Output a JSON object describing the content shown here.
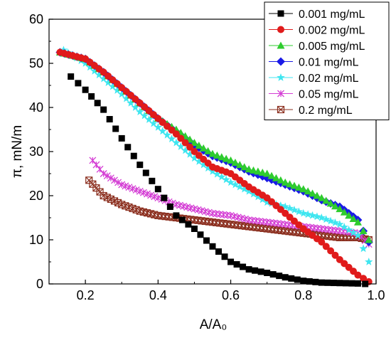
{
  "chart_data": {
    "type": "scatter",
    "xlabel": "A/A₀",
    "ylabel": "π, mN/m",
    "xlim": [
      0.1,
      1.0
    ],
    "ylim": [
      0,
      60
    ],
    "xticks": [
      0.2,
      0.4,
      0.6,
      0.8,
      1.0
    ],
    "xtick_labels": [
      "0.2",
      "0.4",
      "0.6",
      "0.8",
      "1.0"
    ],
    "yticks": [
      0,
      10,
      20,
      30,
      40,
      50,
      60
    ],
    "ytick_labels": [
      "0",
      "10",
      "20",
      "30",
      "40",
      "50",
      "60"
    ],
    "grid": false,
    "legend_position": "top-right",
    "series": [
      {
        "name": "0.001 mg/mL",
        "color": "#000000",
        "marker": "square",
        "points": [
          [
            0.16,
            47
          ],
          [
            0.2,
            44
          ],
          [
            0.25,
            39.5
          ],
          [
            0.3,
            33
          ],
          [
            0.35,
            27
          ],
          [
            0.4,
            21.5
          ],
          [
            0.45,
            15.5
          ],
          [
            0.5,
            12.5
          ],
          [
            0.55,
            8.5
          ],
          [
            0.6,
            5
          ],
          [
            0.65,
            3.3
          ],
          [
            0.7,
            2.5
          ],
          [
            0.75,
            1.5
          ],
          [
            0.8,
            0.7
          ],
          [
            0.85,
            0.3
          ],
          [
            0.9,
            0.2
          ],
          [
            0.95,
            0.1
          ],
          [
            0.97,
            0
          ]
        ]
      },
      {
        "name": "0.002 mg/mL",
        "color": "#e01b1b",
        "marker": "circle",
        "points": [
          [
            0.13,
            52.5
          ],
          [
            0.2,
            51
          ],
          [
            0.25,
            48
          ],
          [
            0.3,
            44.5
          ],
          [
            0.35,
            41
          ],
          [
            0.4,
            37.5
          ],
          [
            0.45,
            34
          ],
          [
            0.5,
            30
          ],
          [
            0.55,
            26.5
          ],
          [
            0.6,
            25
          ],
          [
            0.65,
            22
          ],
          [
            0.7,
            19.5
          ],
          [
            0.75,
            16
          ],
          [
            0.8,
            12.5
          ],
          [
            0.85,
            9.5
          ],
          [
            0.9,
            5.5
          ],
          [
            0.95,
            2
          ],
          [
            0.98,
            0.5
          ]
        ]
      },
      {
        "name": "0.005 mg/mL",
        "color": "#2ecc2e",
        "marker": "triangle",
        "points": [
          [
            0.13,
            52.5
          ],
          [
            0.2,
            51
          ],
          [
            0.25,
            48
          ],
          [
            0.3,
            44.5
          ],
          [
            0.35,
            41
          ],
          [
            0.4,
            37.5
          ],
          [
            0.45,
            35
          ],
          [
            0.5,
            32
          ],
          [
            0.55,
            29.5
          ],
          [
            0.6,
            28
          ],
          [
            0.65,
            26
          ],
          [
            0.7,
            25
          ],
          [
            0.75,
            23
          ],
          [
            0.8,
            21.5
          ],
          [
            0.85,
            19.5
          ],
          [
            0.9,
            17
          ],
          [
            0.95,
            14
          ],
          [
            0.98,
            10
          ]
        ]
      },
      {
        "name": "0.01 mg/mL",
        "color": "#1a1ae6",
        "marker": "diamond",
        "points": [
          [
            0.13,
            52.5
          ],
          [
            0.2,
            51
          ],
          [
            0.25,
            48
          ],
          [
            0.3,
            44.5
          ],
          [
            0.35,
            41
          ],
          [
            0.4,
            37.5
          ],
          [
            0.45,
            34.5
          ],
          [
            0.5,
            31.5
          ],
          [
            0.55,
            29
          ],
          [
            0.6,
            27.5
          ],
          [
            0.65,
            25.5
          ],
          [
            0.7,
            24
          ],
          [
            0.75,
            22.5
          ],
          [
            0.8,
            21
          ],
          [
            0.85,
            19
          ],
          [
            0.9,
            17.5
          ],
          [
            0.95,
            14.5
          ],
          [
            0.98,
            9.5
          ]
        ]
      },
      {
        "name": "0.02 mg/mL",
        "color": "#3fe6f0",
        "marker": "star",
        "points": [
          [
            0.14,
            53
          ],
          [
            0.2,
            50
          ],
          [
            0.25,
            46.5
          ],
          [
            0.3,
            43
          ],
          [
            0.35,
            39
          ],
          [
            0.4,
            35.5
          ],
          [
            0.45,
            32
          ],
          [
            0.5,
            28.5
          ],
          [
            0.55,
            25.5
          ],
          [
            0.6,
            23
          ],
          [
            0.65,
            21
          ],
          [
            0.7,
            18.5
          ],
          [
            0.75,
            17.5
          ],
          [
            0.8,
            16
          ],
          [
            0.85,
            15
          ],
          [
            0.9,
            13.5
          ],
          [
            0.95,
            11
          ],
          [
            0.98,
            5
          ]
        ]
      },
      {
        "name": "0.05 mg/mL",
        "color": "#d43cd4",
        "marker": "x",
        "points": [
          [
            0.22,
            28
          ],
          [
            0.25,
            25
          ],
          [
            0.3,
            22.5
          ],
          [
            0.35,
            21
          ],
          [
            0.4,
            19.5
          ],
          [
            0.45,
            18
          ],
          [
            0.5,
            17
          ],
          [
            0.55,
            16
          ],
          [
            0.6,
            15.5
          ],
          [
            0.65,
            14.5
          ],
          [
            0.7,
            14
          ],
          [
            0.75,
            13.5
          ],
          [
            0.8,
            13
          ],
          [
            0.85,
            12.5
          ],
          [
            0.9,
            12
          ],
          [
            0.95,
            11.5
          ],
          [
            0.98,
            9
          ]
        ]
      },
      {
        "name": "0.2 mg/mL",
        "color": "#8b2e1e",
        "marker": "xbox",
        "points": [
          [
            0.21,
            23.5
          ],
          [
            0.25,
            20
          ],
          [
            0.3,
            18
          ],
          [
            0.35,
            16.5
          ],
          [
            0.4,
            15.5
          ],
          [
            0.45,
            15
          ],
          [
            0.5,
            14.5
          ],
          [
            0.55,
            14
          ],
          [
            0.6,
            13.5
          ],
          [
            0.65,
            13
          ],
          [
            0.7,
            12.5
          ],
          [
            0.75,
            12
          ],
          [
            0.8,
            11.5
          ],
          [
            0.85,
            11
          ],
          [
            0.9,
            10.5
          ],
          [
            0.95,
            10.5
          ],
          [
            0.98,
            10
          ]
        ]
      }
    ]
  }
}
